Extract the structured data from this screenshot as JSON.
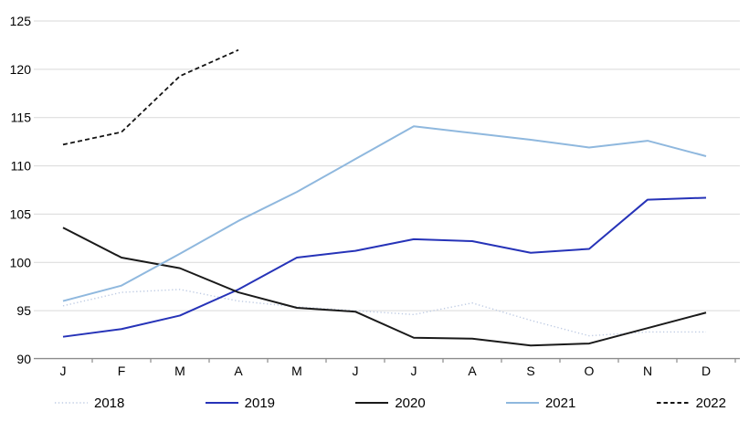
{
  "chart_data": {
    "type": "line",
    "title": "",
    "xlabel": "",
    "ylabel": "",
    "categories": [
      "J",
      "F",
      "M",
      "A",
      "M",
      "J",
      "J",
      "A",
      "S",
      "O",
      "N",
      "D"
    ],
    "series": [
      {
        "name": "2018",
        "style": "dotted",
        "color": "#becbe3",
        "values": [
          95.5,
          96.9,
          97.2,
          96.0,
          95.4,
          95.0,
          94.6,
          95.8,
          94.0,
          92.4,
          92.8,
          92.8
        ]
      },
      {
        "name": "2019",
        "style": "solid",
        "color": "#2633b8",
        "values": [
          92.3,
          93.1,
          94.5,
          97.2,
          100.5,
          101.2,
          102.4,
          102.2,
          101.0,
          101.4,
          106.5,
          106.7
        ]
      },
      {
        "name": "2020",
        "style": "solid",
        "color": "#1a1a1a",
        "values": [
          103.6,
          100.5,
          99.4,
          96.9,
          95.3,
          94.9,
          92.2,
          92.1,
          91.4,
          91.6,
          93.2,
          94.8
        ]
      },
      {
        "name": "2021",
        "style": "solid",
        "color": "#8fb8de",
        "values": [
          96.0,
          97.6,
          100.9,
          104.3,
          107.3,
          110.7,
          114.1,
          113.4,
          112.7,
          111.9,
          112.6,
          111.0
        ]
      },
      {
        "name": "2022",
        "style": "dashed",
        "color": "#141414",
        "values": [
          112.2,
          113.5,
          119.3,
          122.0
        ]
      }
    ],
    "ylim": [
      90,
      125
    ],
    "yticks": [
      90,
      95,
      100,
      105,
      110,
      115,
      120,
      125
    ],
    "grid": true,
    "legend_position": "bottom"
  },
  "colors": {
    "gridline": "#d9d9d9",
    "axis": "#8c8c8c",
    "text": "#000000"
  }
}
